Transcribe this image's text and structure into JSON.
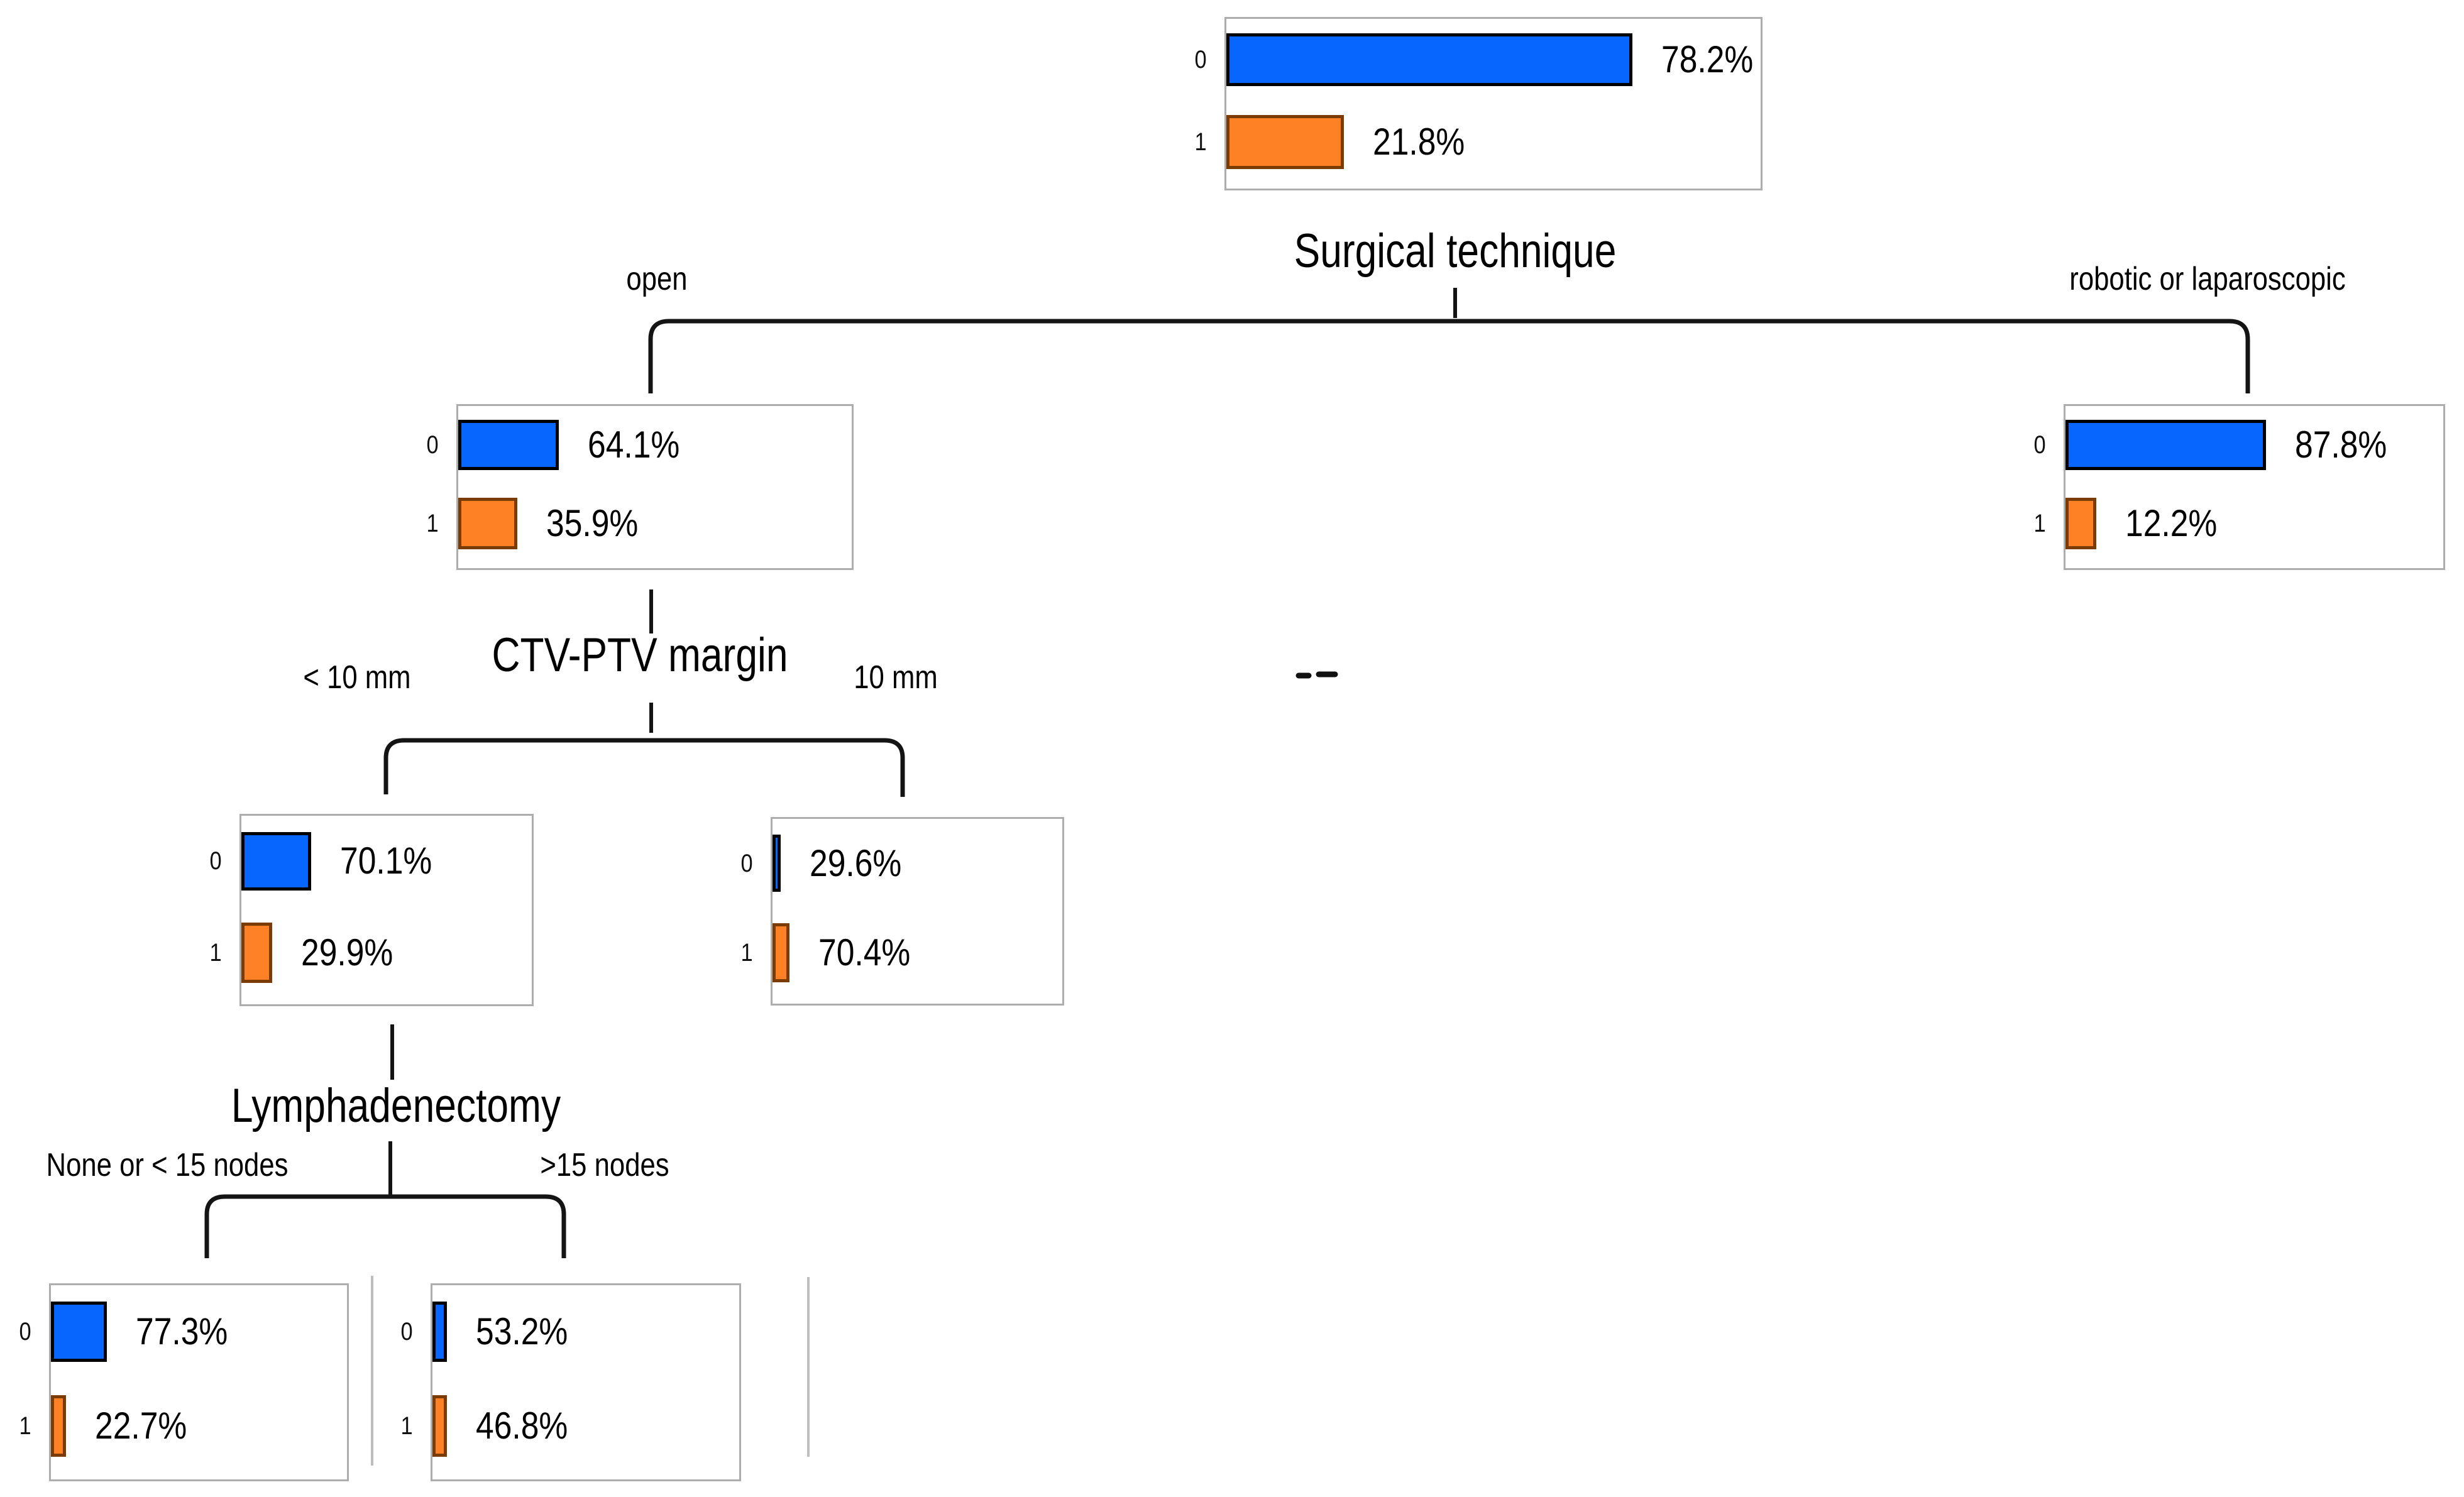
{
  "figure": {
    "description": "Decision tree with per-node horizontal bar charts of class probabilities",
    "class_labels": [
      "0",
      "1"
    ],
    "splits": [
      {
        "title": "Surgical technique",
        "left_branch": "open",
        "right_branch": "robotic or laparoscopic"
      },
      {
        "title": "CTV-PTV margin",
        "left_branch": "< 10 mm",
        "right_branch": "10 mm"
      },
      {
        "title": "Lymphadenectomy",
        "left_branch": "None or < 15 nodes",
        "right_branch": ">15 nodes"
      }
    ],
    "colors": {
      "class0_fill": "#0666fd",
      "class0_border": "#000000",
      "class1_fill": "#ff8125",
      "class1_border": "#7b3b05",
      "node_box_border": "#adadad",
      "connector": "#141414",
      "artifact_line": "#bebebe"
    }
  },
  "chart_data": [
    {
      "type": "bar",
      "orientation": "horizontal",
      "node": "root",
      "branch": "",
      "categories": [
        "0",
        "1"
      ],
      "values": [
        78.2,
        21.8
      ],
      "value_labels": [
        "78.2%",
        "21.8%"
      ],
      "bar_fractions": [
        0.76,
        0.22
      ]
    },
    {
      "type": "bar",
      "orientation": "horizontal",
      "node": "surgical-open",
      "branch": "open",
      "categories": [
        "0",
        "1"
      ],
      "values": [
        64.1,
        35.9
      ],
      "value_labels": [
        "64.1%",
        "35.9%"
      ],
      "bar_fractions": [
        0.255,
        0.15
      ]
    },
    {
      "type": "bar",
      "orientation": "horizontal",
      "node": "surgical-robotic-or-laparoscopic",
      "branch": "robotic or laparoscopic",
      "categories": [
        "0",
        "1"
      ],
      "values": [
        87.8,
        12.2
      ],
      "value_labels": [
        "87.8%",
        "12.2%"
      ],
      "bar_fractions": [
        0.53,
        0.082
      ]
    },
    {
      "type": "bar",
      "orientation": "horizontal",
      "node": "ctv-ptv-lt-10mm",
      "branch": "< 10 mm",
      "categories": [
        "0",
        "1"
      ],
      "values": [
        70.1,
        29.9
      ],
      "value_labels": [
        "70.1%",
        "29.9%"
      ],
      "bar_fractions": [
        0.24,
        0.105
      ]
    },
    {
      "type": "bar",
      "orientation": "horizontal",
      "node": "ctv-ptv-10mm",
      "branch": "10 mm",
      "categories": [
        "0",
        "1"
      ],
      "values": [
        29.6,
        70.4
      ],
      "value_labels": [
        "29.6%",
        "70.4%"
      ],
      "bar_fractions": [
        0.028,
        0.058
      ]
    },
    {
      "type": "bar",
      "orientation": "horizontal",
      "node": "lymphadenectomy-none-or-lt-15-nodes",
      "branch": "None or < 15 nodes",
      "categories": [
        "0",
        "1"
      ],
      "values": [
        77.3,
        22.7
      ],
      "value_labels": [
        "77.3%",
        "22.7%"
      ],
      "bar_fractions": [
        0.19,
        0.05
      ]
    },
    {
      "type": "bar",
      "orientation": "horizontal",
      "node": "lymphadenectomy-gt-15-nodes",
      "branch": ">15 nodes",
      "categories": [
        "0",
        "1"
      ],
      "values": [
        53.2,
        46.8
      ],
      "value_labels": [
        "53.2%",
        "46.8%"
      ],
      "bar_fractions": [
        0.047,
        0.047
      ]
    }
  ]
}
